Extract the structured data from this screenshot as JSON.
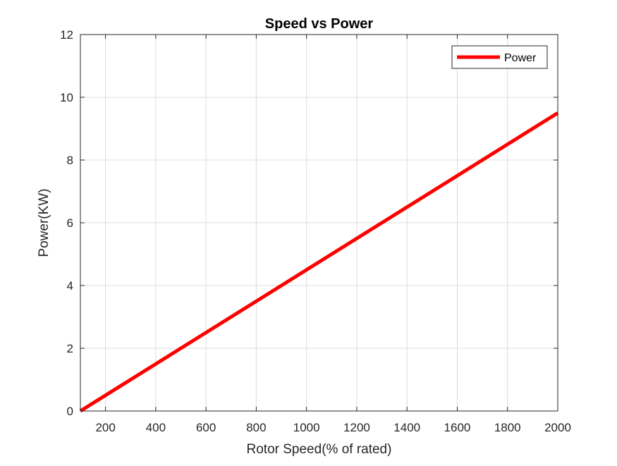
{
  "chart_data": {
    "type": "line",
    "title": "Speed vs Power",
    "xlabel": "Rotor Speed(% of rated)",
    "ylabel": "Power(KW)",
    "xlim": [
      100,
      2000
    ],
    "ylim": [
      0,
      12
    ],
    "xticks": [
      200,
      400,
      600,
      800,
      1000,
      1200,
      1400,
      1600,
      1800,
      2000
    ],
    "yticks": [
      0,
      2,
      4,
      6,
      8,
      10,
      12
    ],
    "grid": true,
    "legend_position": "top-right",
    "series": [
      {
        "name": "Power",
        "color": "#ff0000",
        "x": [
          100,
          2000
        ],
        "y": [
          0,
          9.5
        ]
      }
    ]
  }
}
